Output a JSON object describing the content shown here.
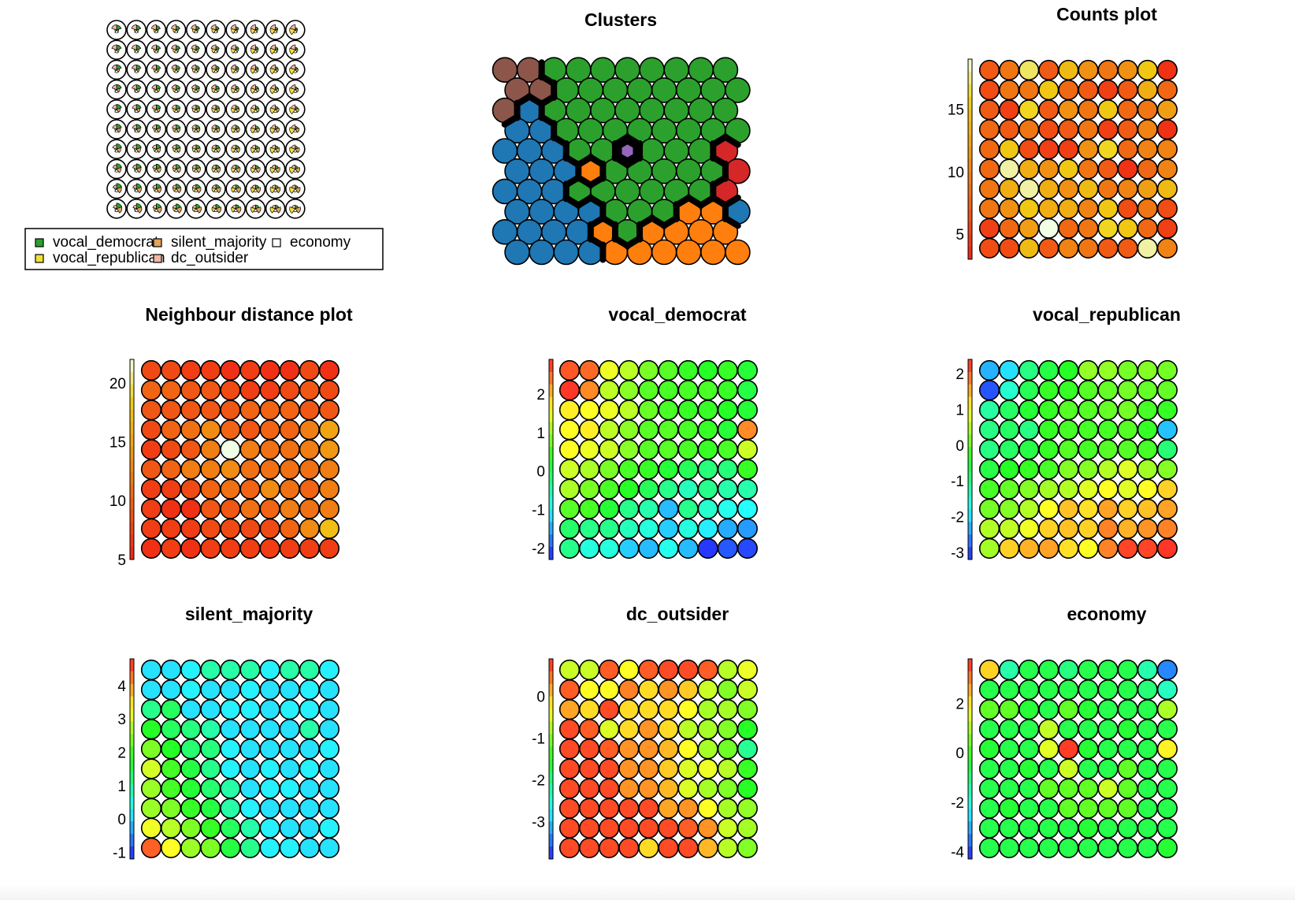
{
  "chart_data": [
    {
      "type": "heatmap",
      "panel": "codes",
      "title": "",
      "grid": {
        "rows": 10,
        "cols": 10,
        "shape": "circle"
      },
      "legend": {
        "placement": "bottom",
        "entries": [
          {
            "label": "vocal_democrat",
            "color": "#2ca02c"
          },
          {
            "label": "silent_majority",
            "color": "#e2a25c"
          },
          {
            "label": "economy",
            "color": "#ffffff"
          },
          {
            "label": "vocal_republican",
            "color": "#f2e03a"
          },
          {
            "label": "dc_outsider",
            "color": "#f3b6a6"
          }
        ]
      }
    },
    {
      "type": "heatmap",
      "panel": "clusters",
      "title": "Clusters",
      "grid": {
        "rows": 10,
        "cols": 10,
        "shape": "hexagonal"
      },
      "palette": {
        "1": "#1f77b4",
        "2": "#ff7f0e",
        "3": "#2ca02c",
        "4": "#d62728",
        "5": "#9467bd",
        "6": "#8c564b"
      },
      "values": [
        [
          6,
          6,
          3,
          3,
          3,
          3,
          3,
          3,
          3,
          3
        ],
        [
          6,
          6,
          3,
          3,
          3,
          3,
          3,
          3,
          3,
          3
        ],
        [
          6,
          1,
          3,
          3,
          3,
          3,
          3,
          3,
          3,
          3
        ],
        [
          1,
          1,
          3,
          3,
          3,
          3,
          3,
          3,
          3,
          3
        ],
        [
          1,
          1,
          1,
          3,
          3,
          5,
          3,
          3,
          3,
          4
        ],
        [
          1,
          1,
          1,
          2,
          3,
          3,
          3,
          3,
          3,
          4
        ],
        [
          1,
          1,
          1,
          3,
          3,
          3,
          3,
          3,
          3,
          4
        ],
        [
          1,
          1,
          1,
          1,
          3,
          3,
          3,
          2,
          2,
          1
        ],
        [
          1,
          1,
          1,
          1,
          2,
          3,
          2,
          2,
          2,
          2
        ],
        [
          1,
          1,
          1,
          1,
          2,
          2,
          2,
          2,
          2,
          2
        ]
      ]
    },
    {
      "type": "heatmap",
      "panel": "counts",
      "title": "Counts plot",
      "grid": {
        "rows": 10,
        "cols": 10,
        "shape": "circle"
      },
      "palette_name": "heat",
      "colorbar": {
        "range": [
          3,
          19
        ],
        "ticks": [
          5,
          10,
          15
        ]
      },
      "values": [
        [
          7,
          9,
          17,
          7,
          14,
          11,
          9,
          11,
          15,
          4
        ],
        [
          6,
          9,
          9,
          15,
          8,
          7,
          5,
          7,
          13,
          8
        ],
        [
          7,
          5,
          16,
          7,
          11,
          9,
          15,
          8,
          9,
          12
        ],
        [
          8,
          7,
          9,
          6,
          7,
          9,
          5,
          7,
          10,
          4
        ],
        [
          8,
          15,
          6,
          5,
          5,
          11,
          16,
          8,
          10,
          10
        ],
        [
          8,
          18,
          13,
          11,
          15,
          9,
          7,
          4,
          8,
          10
        ],
        [
          9,
          13,
          18,
          13,
          11,
          14,
          9,
          10,
          12,
          14
        ],
        [
          9,
          11,
          15,
          13,
          13,
          10,
          15,
          6,
          9,
          6
        ],
        [
          5,
          8,
          12,
          19,
          8,
          9,
          16,
          15,
          8,
          5
        ],
        [
          6,
          6,
          14,
          7,
          10,
          9,
          7,
          7,
          18,
          10
        ]
      ]
    },
    {
      "type": "heatmap",
      "panel": "dist",
      "title": "Neighbour distance plot",
      "grid": {
        "rows": 10,
        "cols": 10,
        "shape": "circle"
      },
      "palette_name": "heat",
      "colorbar": {
        "range": [
          5,
          22
        ],
        "ticks": [
          5,
          10,
          15,
          20
        ]
      },
      "values": [
        [
          8,
          8,
          7,
          7,
          6,
          7,
          6,
          6,
          8,
          6
        ],
        [
          10,
          10,
          9,
          9,
          8,
          7,
          7,
          8,
          9,
          8
        ],
        [
          9,
          9,
          9,
          9,
          9,
          10,
          10,
          10,
          9,
          9
        ],
        [
          8,
          10,
          11,
          13,
          10,
          9,
          10,
          10,
          12,
          15
        ],
        [
          7,
          8,
          9,
          12,
          22,
          12,
          11,
          11,
          12,
          14
        ],
        [
          9,
          10,
          12,
          12,
          13,
          11,
          11,
          11,
          11,
          12
        ],
        [
          7,
          7,
          8,
          10,
          11,
          10,
          13,
          11,
          10,
          12
        ],
        [
          7,
          6,
          6,
          9,
          9,
          11,
          10,
          12,
          11,
          12
        ],
        [
          7,
          7,
          7,
          8,
          8,
          8,
          8,
          10,
          13,
          17
        ],
        [
          6,
          7,
          6,
          7,
          7,
          7,
          7,
          7,
          7,
          7
        ]
      ]
    },
    {
      "type": "heatmap",
      "panel": "vocal_democrat",
      "title": "vocal_democrat",
      "grid": {
        "rows": 10,
        "cols": 10,
        "shape": "circle"
      },
      "palette_name": "rainbow",
      "colorbar": {
        "range": [
          -2.3,
          2.9
        ],
        "ticks": [
          -2,
          -1,
          0,
          1,
          2
        ]
      },
      "values": [
        [
          2.6,
          2.5,
          1.5,
          1.2,
          0.8,
          0.6,
          0.4,
          0.3,
          0.4,
          0.2
        ],
        [
          2.8,
          2.3,
          1.2,
          0.9,
          0.6,
          0.5,
          0.5,
          0.5,
          0.4,
          0.1
        ],
        [
          1.7,
          1.6,
          1.5,
          1.2,
          0.7,
          0.5,
          0.4,
          0.4,
          0.3,
          0.2
        ],
        [
          1.6,
          1.7,
          1.2,
          0.9,
          0.6,
          0.6,
          0.5,
          0.4,
          0.2,
          2.3
        ],
        [
          1.6,
          1.5,
          1.3,
          0.9,
          0.6,
          0.6,
          0.5,
          0.4,
          0.5,
          1.3
        ],
        [
          1.3,
          1.1,
          0.8,
          0.5,
          0.4,
          0.2,
          0.0,
          -0.2,
          -0.2,
          0.4
        ],
        [
          1.1,
          0.8,
          0.5,
          0.3,
          0.0,
          -0.3,
          -0.6,
          -0.3,
          -0.5,
          -0.5
        ],
        [
          0.6,
          0.5,
          0.2,
          -0.3,
          -0.5,
          -1.4,
          -0.3,
          -0.7,
          -0.9,
          -1.0
        ],
        [
          -0.1,
          -0.3,
          -0.3,
          -0.6,
          -0.8,
          -1.3,
          -0.8,
          -1.1,
          -1.5,
          -1.6
        ],
        [
          -0.3,
          -0.8,
          -0.8,
          -1.3,
          -1.4,
          -0.9,
          -1.4,
          -2.2,
          -2.0,
          -2.1
        ]
      ]
    },
    {
      "type": "heatmap",
      "panel": "vocal_republican",
      "title": "vocal_republican",
      "grid": {
        "rows": 10,
        "cols": 10,
        "shape": "circle"
      },
      "palette_name": "rainbow",
      "colorbar": {
        "range": [
          -3.2,
          2.4
        ],
        "ticks": [
          -3,
          -2,
          -1,
          0,
          1,
          2
        ]
      },
      "values": [
        [
          -2.3,
          -2.0,
          -1.0,
          -0.6,
          -0.4,
          0.3,
          0.3,
          0.1,
          0.2,
          0.1
        ],
        [
          -2.9,
          -1.5,
          -0.7,
          -0.3,
          -0.3,
          -0.1,
          0.0,
          0.1,
          0.0,
          0.0
        ],
        [
          -1.2,
          -0.8,
          -0.5,
          -0.3,
          -0.1,
          -0.1,
          0.0,
          0.1,
          -0.2,
          -0.3
        ],
        [
          -1.0,
          -0.8,
          -1.0,
          -0.3,
          -0.2,
          -0.2,
          -0.2,
          -0.1,
          -0.3,
          -2.2
        ],
        [
          -1.0,
          -0.8,
          -0.6,
          -0.3,
          -0.1,
          -0.2,
          -0.1,
          -0.1,
          -0.2,
          -0.9
        ],
        [
          -0.6,
          -0.4,
          -0.3,
          -0.2,
          0.2,
          0.2,
          0.5,
          0.8,
          0.4,
          0.2
        ],
        [
          -0.2,
          0.0,
          0.2,
          0.4,
          0.5,
          0.8,
          1.0,
          0.8,
          1.0,
          1.3
        ],
        [
          0.1,
          0.2,
          0.5,
          1.0,
          1.4,
          1.2,
          1.6,
          1.3,
          1.4,
          1.6
        ],
        [
          0.5,
          0.6,
          0.9,
          1.3,
          1.4,
          1.3,
          1.8,
          1.5,
          1.7,
          1.8
        ],
        [
          0.4,
          1.3,
          1.5,
          1.6,
          1.2,
          1.0,
          1.8,
          2.2,
          2.2,
          2.3
        ]
      ]
    },
    {
      "type": "heatmap",
      "panel": "silent_majority",
      "title": "silent_majority",
      "grid": {
        "rows": 10,
        "cols": 10,
        "shape": "circle"
      },
      "palette_name": "rainbow",
      "colorbar": {
        "range": [
          -1.2,
          4.8
        ],
        "ticks": [
          -1,
          0,
          1,
          2,
          3,
          4
        ]
      },
      "values": [
        [
          0.1,
          0.1,
          0.2,
          0.9,
          0.9,
          0.9,
          0.2,
          0.9,
          0.9,
          0.2
        ],
        [
          0.1,
          0.1,
          0.2,
          0.1,
          0.1,
          0.2,
          0.1,
          0.1,
          0.2,
          0.1
        ],
        [
          1.1,
          1.4,
          0.1,
          0.1,
          0.2,
          0.2,
          0.1,
          0.2,
          0.2,
          0.1
        ],
        [
          1.8,
          1.4,
          1.2,
          0.9,
          0.1,
          0.1,
          0.1,
          0.1,
          0.9,
          0.1
        ],
        [
          2.4,
          1.8,
          1.3,
          1.2,
          0.2,
          0.1,
          0.1,
          0.1,
          0.1,
          0.2
        ],
        [
          3.0,
          2.0,
          1.6,
          1.1,
          0.2,
          0.1,
          0.2,
          0.1,
          0.2,
          0.1
        ],
        [
          2.6,
          2.0,
          1.7,
          1.3,
          0.9,
          0.1,
          0.2,
          0.2,
          0.1,
          0.1
        ],
        [
          2.6,
          2.4,
          1.9,
          1.6,
          0.9,
          0.2,
          0.1,
          0.1,
          0.1,
          0.1
        ],
        [
          3.2,
          2.8,
          2.4,
          1.9,
          1.4,
          0.9,
          0.2,
          0.1,
          0.1,
          0.2
        ],
        [
          4.4,
          3.3,
          2.6,
          2.4,
          1.6,
          1.1,
          0.2,
          0.2,
          0.1,
          0.1
        ]
      ]
    },
    {
      "type": "heatmap",
      "panel": "dc_outsider",
      "title": "dc_outsider",
      "grid": {
        "rows": 10,
        "cols": 10,
        "shape": "circle"
      },
      "palette_name": "rainbow",
      "colorbar": {
        "range": [
          -3.9,
          0.9
        ],
        "ticks": [
          -3,
          -2,
          -1,
          0
        ]
      },
      "values": [
        [
          -0.6,
          -0.6,
          0.6,
          -0.3,
          0.6,
          0.7,
          0.7,
          0.6,
          -0.7,
          -0.4
        ],
        [
          0.6,
          -0.3,
          -0.3,
          0.4,
          -0.1,
          0.3,
          0.0,
          -0.6,
          -1.0,
          -0.6
        ],
        [
          0.2,
          -0.1,
          0.7,
          -0.1,
          -0.1,
          -0.1,
          -0.3,
          -0.8,
          -0.8,
          -1.0
        ],
        [
          0.7,
          0.6,
          -0.5,
          -0.1,
          0.3,
          -0.1,
          -0.7,
          -0.8,
          -1.0,
          -1.5
        ],
        [
          0.7,
          0.7,
          0.6,
          0.3,
          0.3,
          0.1,
          -0.3,
          -0.8,
          -1.1,
          -2.1
        ],
        [
          0.7,
          0.7,
          0.7,
          0.3,
          0.3,
          0.0,
          -0.5,
          -0.4,
          -0.7,
          -1.4
        ],
        [
          0.7,
          0.7,
          0.7,
          0.3,
          0.3,
          0.1,
          -0.5,
          -0.8,
          -1.0,
          -1.5
        ],
        [
          0.7,
          0.7,
          0.7,
          0.7,
          0.7,
          0.2,
          0.3,
          -0.3,
          -0.8,
          -0.9
        ],
        [
          0.7,
          0.7,
          0.7,
          0.7,
          0.7,
          0.7,
          0.6,
          0.3,
          -0.6,
          -0.8
        ],
        [
          0.7,
          0.7,
          0.7,
          0.7,
          -0.1,
          0.7,
          0.7,
          0.1,
          -0.7,
          -1.0
        ]
      ]
    },
    {
      "type": "heatmap",
      "panel": "economy",
      "title": "economy",
      "grid": {
        "rows": 10,
        "cols": 10,
        "shape": "circle"
      },
      "palette_name": "rainbow",
      "colorbar": {
        "range": [
          -4.3,
          3.8
        ],
        "ticks": [
          -4,
          -2,
          0,
          2
        ]
      },
      "values": [
        [
          2.2,
          -1.5,
          -0.6,
          -0.6,
          -1.1,
          -0.6,
          -0.6,
          -0.6,
          -1.5,
          -3.4
        ],
        [
          -0.6,
          -0.6,
          -0.6,
          -0.6,
          -0.6,
          -0.6,
          -0.6,
          -0.6,
          -1.0,
          -1.7
        ],
        [
          0.3,
          0.3,
          -0.4,
          -0.6,
          0.3,
          -0.4,
          -0.6,
          -0.6,
          -0.6,
          1.0
        ],
        [
          -0.6,
          -0.6,
          -0.6,
          1.2,
          -0.6,
          -0.6,
          -0.6,
          -0.4,
          -0.6,
          -0.6
        ],
        [
          -0.4,
          -0.6,
          -0.6,
          1.5,
          3.6,
          -0.4,
          -0.6,
          -0.6,
          -0.6,
          1.9
        ],
        [
          -0.6,
          -0.6,
          -0.4,
          -0.6,
          1.3,
          -0.6,
          -0.6,
          0.3,
          -0.6,
          -0.6
        ],
        [
          -0.6,
          -0.6,
          -0.6,
          0.3,
          0.3,
          0.3,
          1.3,
          0.3,
          -0.6,
          -0.6
        ],
        [
          -0.6,
          -0.4,
          -0.6,
          -0.6,
          0.3,
          0.3,
          0.3,
          0.3,
          -0.6,
          -0.6
        ],
        [
          -0.6,
          -0.6,
          -0.6,
          -0.6,
          -0.6,
          -0.4,
          -0.6,
          -0.6,
          -0.6,
          -0.6
        ],
        [
          -0.6,
          -0.6,
          -0.6,
          -0.6,
          -0.6,
          -0.6,
          -0.6,
          -0.6,
          -0.6,
          -0.4
        ]
      ]
    }
  ]
}
